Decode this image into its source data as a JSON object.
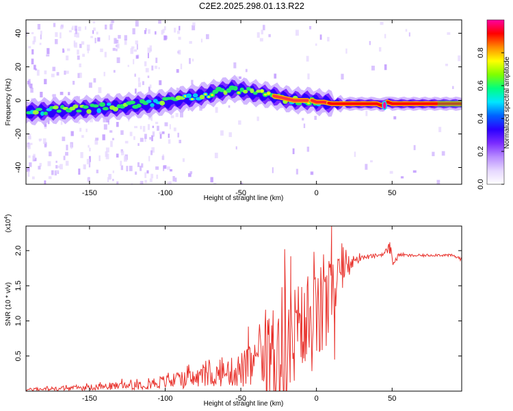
{
  "title": "C2E2.2025.298.01.13.R22",
  "chart_data": [
    {
      "type": "heatmap",
      "name": "spectrogram",
      "xlabel": "Height of straight line (km)",
      "ylabel": "Frequency (Hz)",
      "xlim": [
        -192,
        96
      ],
      "ylim": [
        -50,
        48
      ],
      "xticks": [
        -150,
        -100,
        -50,
        0,
        50
      ],
      "yticks": [
        -40,
        -20,
        0,
        20,
        40
      ],
      "ridge": {
        "x": [
          -192,
          -150,
          -120,
          -100,
          -80,
          -65,
          -55,
          -45,
          -38,
          -30,
          -25,
          -20,
          -15,
          -8,
          -3,
          0,
          5,
          10,
          20,
          30,
          40,
          43,
          45,
          47,
          50,
          60,
          70,
          80,
          90,
          96
        ],
        "y": [
          -7,
          -5,
          -3,
          -1,
          2,
          5,
          7,
          5,
          4,
          3,
          2,
          1,
          0,
          0,
          0,
          -1,
          -1,
          -2,
          -2,
          -2,
          -2,
          -3,
          -2,
          -1,
          -2,
          -2,
          -2,
          -2,
          -2,
          -2
        ]
      },
      "colorbar": {
        "label": "Normalized spectral amplitude",
        "range": [
          0,
          1
        ],
        "ticks": [
          "0.0",
          "0.2",
          "0.4",
          "0.6",
          "0.8"
        ],
        "colors": [
          "#ffffff",
          "#e6d7ff",
          "#b88cff",
          "#7b2cff",
          "#2b00ff",
          "#0061ff",
          "#00e6ff",
          "#00ff80",
          "#7fff00",
          "#ffff00",
          "#ff8c00",
          "#ff0000",
          "#ff00a0"
        ]
      }
    },
    {
      "type": "line",
      "name": "snr",
      "xlabel": "Height of straight line (km)",
      "ylabel": "SNR (10 * v/v)",
      "multiplier": "(x10",
      "multiplier_exp": "4",
      "multiplier_close": ")",
      "xlim": [
        -192,
        96
      ],
      "ylim": [
        0,
        2.35
      ],
      "xticks": [
        -150,
        -100,
        -50,
        0,
        50
      ],
      "yticks": [
        "0.5",
        "1.0",
        "1.5",
        "2.0"
      ],
      "color": "#e8302a",
      "envelope": {
        "x": [
          -192,
          -150,
          -120,
          -100,
          -80,
          -60,
          -45,
          -35,
          -30,
          -25,
          -20,
          -15,
          -10,
          -5,
          0,
          5,
          10,
          15,
          20,
          25,
          30,
          40,
          45,
          48,
          50,
          52,
          55,
          60,
          70,
          80,
          90,
          96
        ],
        "base": [
          0.02,
          0.05,
          0.09,
          0.13,
          0.18,
          0.25,
          0.33,
          0.42,
          0.48,
          0.55,
          0.6,
          0.68,
          0.78,
          0.9,
          1.02,
          1.15,
          1.3,
          1.55,
          1.75,
          1.85,
          1.9,
          1.93,
          1.96,
          2.05,
          1.9,
          1.85,
          1.95,
          1.93,
          1.93,
          1.94,
          1.93,
          1.88
        ],
        "amp": [
          0.02,
          0.04,
          0.07,
          0.1,
          0.14,
          0.18,
          0.3,
          0.45,
          0.7,
          1.1,
          0.9,
          0.9,
          0.8,
          0.75,
          0.7,
          0.7,
          0.6,
          0.4,
          0.2,
          0.08,
          0.04,
          0.03,
          0.03,
          0.08,
          0.12,
          0.05,
          0.03,
          0.02,
          0.02,
          0.02,
          0.02,
          0.03
        ]
      },
      "spikes": [
        {
          "x": -21,
          "y": 2.02
        },
        {
          "x": -17,
          "y": 1.92
        },
        {
          "x": 10,
          "y": 2.35
        },
        {
          "x": -45,
          "y": 0.92
        },
        {
          "x": 12,
          "y": 0.45
        },
        {
          "x": 48.5,
          "y": 2.12
        }
      ]
    }
  ]
}
